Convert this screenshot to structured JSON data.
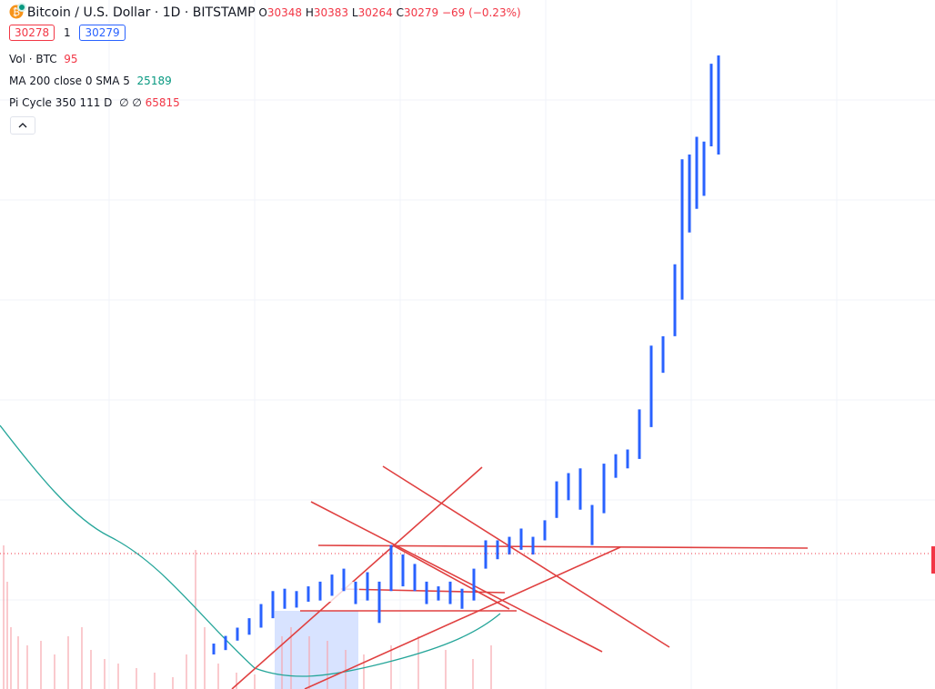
{
  "header": {
    "symbol": "Bitcoin / U.S. Dollar · 1D · BITSTAMP",
    "ohlc": [
      {
        "label": "O",
        "value": 30348
      },
      {
        "label": "H",
        "value": 30383
      },
      {
        "label": "L",
        "value": 30264
      },
      {
        "label": "C",
        "value": 30279
      }
    ],
    "change": "−69 (−0.23%)"
  },
  "price_buttons": {
    "sell": "30278",
    "quantity": "1",
    "buy": "30279"
  },
  "indicators": [
    {
      "name": "Vol · BTC",
      "values": [
        "95"
      ]
    },
    {
      "name": "MA 200 close 0 SMA 5",
      "values": [
        "25189"
      ]
    },
    {
      "name": "Pi Cycle 350 111 D",
      "values": [
        "∅",
        "∅",
        "65815"
      ]
    }
  ],
  "chart": {
    "type": "bar",
    "ylim": [
      18800,
      77200
    ],
    "color": "#2962ff",
    "highs": [
      22650,
      23300,
      24000,
      24800,
      26000,
      27100,
      27300,
      27100,
      27500,
      27900,
      28500,
      29000,
      27900,
      28700,
      27900,
      31000,
      30200,
      29400,
      27900,
      27500,
      27900,
      27300,
      29000,
      31400,
      31400,
      31700,
      32400,
      31700,
      33100,
      36400,
      37100,
      37500,
      34400,
      37900,
      38700,
      39100,
      42500,
      47900,
      48700,
      54800,
      63700,
      64100,
      65600,
      65200,
      71800,
      72500
    ],
    "lows": [
      21730,
      22100,
      22900,
      23400,
      24000,
      24800,
      25600,
      25700,
      26200,
      26300,
      26700,
      27100,
      26000,
      26300,
      24400,
      27100,
      27500,
      27100,
      26000,
      26300,
      26000,
      25600,
      26300,
      29000,
      29800,
      30200,
      30600,
      30200,
      31400,
      33300,
      34800,
      34000,
      31000,
      33700,
      36700,
      37500,
      38300,
      41000,
      45600,
      48700,
      51800,
      57500,
      59500,
      60600,
      64800,
      64100
    ]
  }
}
